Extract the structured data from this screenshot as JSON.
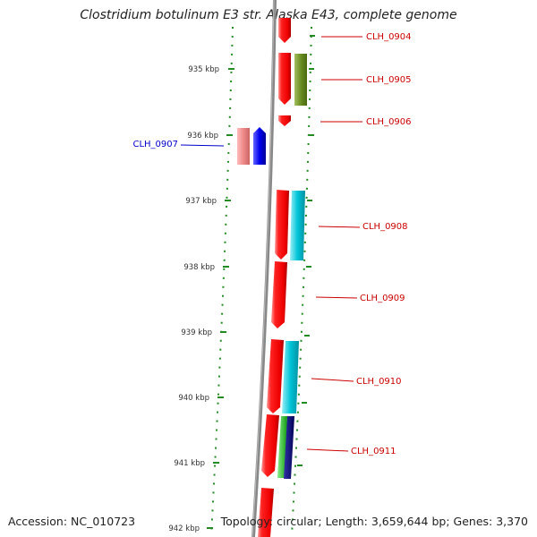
{
  "title": "Clostridium botulinum E3 str. Alaska E43, complete genome",
  "footer": {
    "accession": "Accession: NC_010723",
    "summary": "Topology: circular; Length: 3,659,644 bp; Genes: 3,370"
  },
  "kbp_ticks": [
    "935 kbp",
    "936 kbp",
    "937 kbp",
    "938 kbp",
    "939 kbp",
    "940 kbp",
    "941 kbp",
    "942 kbp"
  ],
  "gene_labels": [
    {
      "id": "CLH_0904",
      "color": "#cc0000"
    },
    {
      "id": "CLH_0905",
      "color": "#cc0000"
    },
    {
      "id": "CLH_0906",
      "color": "#cc0000"
    },
    {
      "id": "CLH_0907",
      "color": "#0000cc"
    },
    {
      "id": "CLH_0908",
      "color": "#cc0000"
    },
    {
      "id": "CLH_0909",
      "color": "#cc0000"
    },
    {
      "id": "CLH_0910",
      "color": "#cc0000"
    },
    {
      "id": "CLH_0911",
      "color": "#cc0000"
    }
  ],
  "colors": {
    "forward_gene": "#ee0000",
    "reverse_gene": "#0000dd",
    "reverse_gene_faint": "#ee8888",
    "olive_feature": "#6b8e23",
    "cyan_feature": "#00bcd4",
    "green_feature": "#22bb22",
    "navy_feature": "#000080",
    "backbone": "#888888",
    "dotted_ring": "#228b22"
  }
}
